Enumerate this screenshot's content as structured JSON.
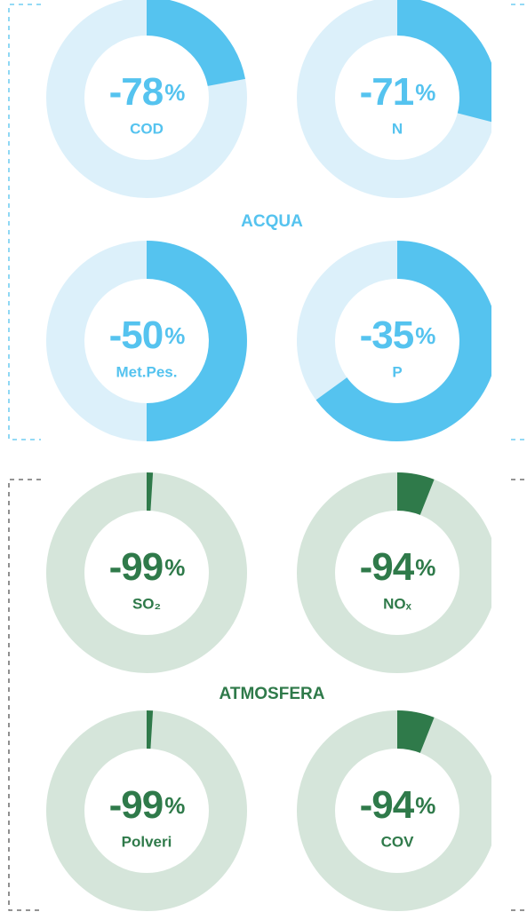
{
  "chart_data": [
    {
      "type": "donut",
      "title": "ACQUA",
      "unit": "%",
      "color": "#55c3ef",
      "track_color": "#dcf0fa",
      "categories": [
        "COD",
        "N",
        "Met.Pes.",
        "P"
      ],
      "values": [
        -78,
        -71,
        -50,
        -35
      ]
    },
    {
      "type": "donut",
      "title": "ATMOSFERA",
      "unit": "%",
      "color": "#2f7a4a",
      "track_color": "#d5e5da",
      "categories": [
        "SO₂",
        "NOₓ",
        "Polveri",
        "COV"
      ],
      "values": [
        -99,
        -94,
        -99,
        -94
      ]
    }
  ]
}
